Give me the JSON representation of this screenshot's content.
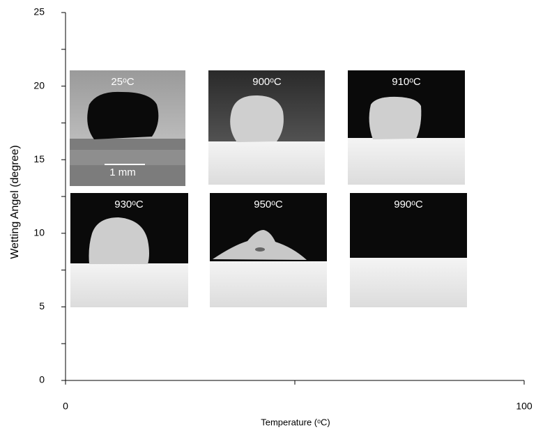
{
  "chart_data": {
    "type": "scatter",
    "xlabel": "Temperature (ᵒC)",
    "ylabel": "Wetting Angel (degree)",
    "xlim": [
      0,
      100
    ],
    "xticks": [
      0,
      100
    ],
    "xminor_ticks": [
      50
    ],
    "ylim": [
      0,
      25
    ],
    "yticks": [
      0,
      5,
      10,
      15,
      20,
      25
    ],
    "yminor_ticks": [
      2.5,
      7.5,
      12.5,
      17.5,
      22.5
    ],
    "insets": [
      {
        "label": "25ᵒC"
      },
      {
        "label": "900ᵒC"
      },
      {
        "label": "910ᵒC"
      },
      {
        "label": "930ᵒC"
      },
      {
        "label": "950ᵒC"
      },
      {
        "label": "990ᵒC"
      }
    ],
    "scale_bar": "1 mm"
  }
}
